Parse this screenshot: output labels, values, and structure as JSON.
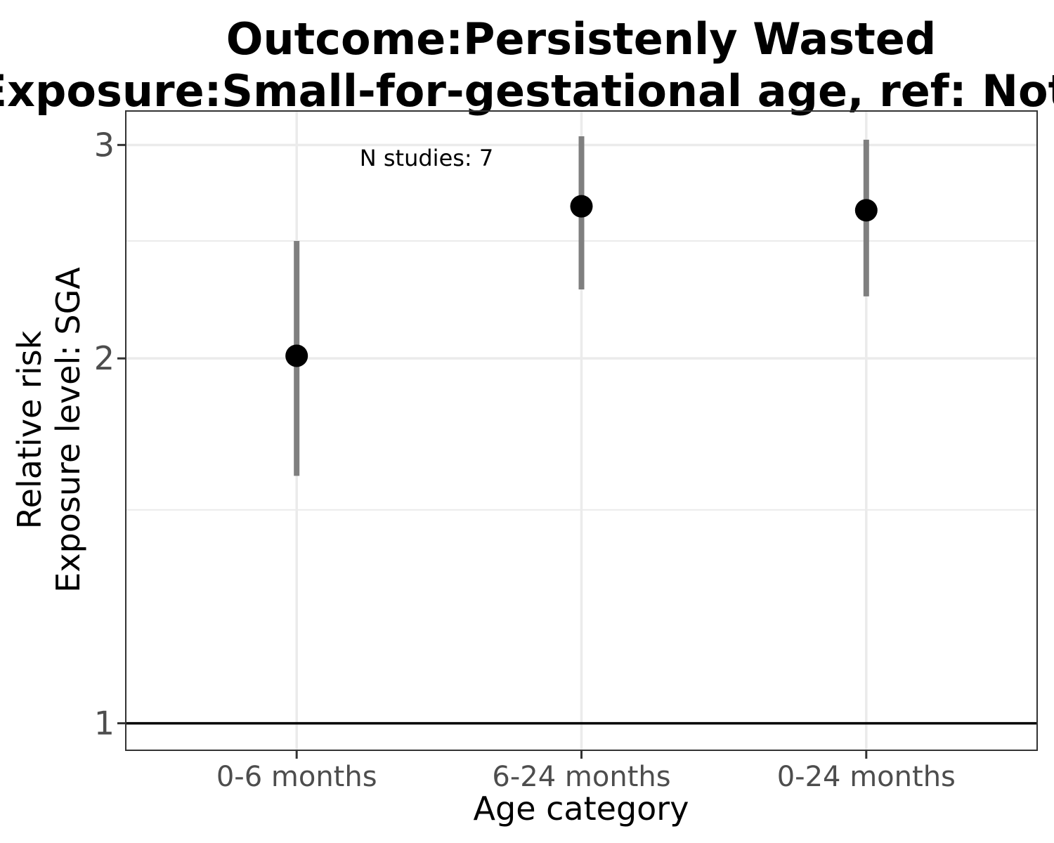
{
  "chart_data": {
    "type": "scatter",
    "title_lines": [
      "Outcome:Persistenly Wasted",
      "Exposure:Small-for-gestational age, ref: Not SGA"
    ],
    "xlabel": "Age category",
    "ylabel_lines": [
      "Relative risk",
      "Exposure level: SGA"
    ],
    "y_scale": "log",
    "ylim": [
      0.95,
      3.2
    ],
    "y_ticks": [
      1,
      2,
      3
    ],
    "y_tick_labels": [
      "1",
      "2",
      "3"
    ],
    "y_minor_gridlines": [
      1.5,
      2.5
    ],
    "reference_line": 1,
    "grid": true,
    "categories": [
      "0-6 months",
      "6-24 months",
      "0-24 months"
    ],
    "series": [
      {
        "estimates": [
          2.01,
          2.67,
          2.65
        ],
        "ci_lower": [
          1.6,
          2.28,
          2.25
        ],
        "ci_upper": [
          2.5,
          3.05,
          3.03
        ]
      }
    ],
    "annotation": "N studies: 7",
    "colors": {
      "point": "#000000",
      "errorbar": "#7f7f7f",
      "gridline": "#ebebeb",
      "panel_border": "#333333",
      "reference_line": "#000000"
    }
  }
}
